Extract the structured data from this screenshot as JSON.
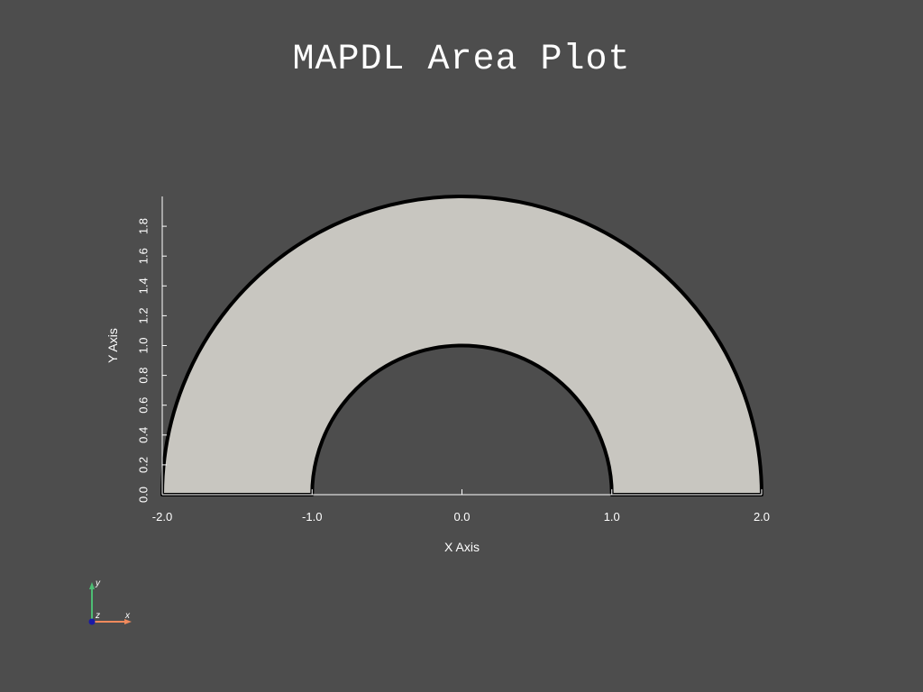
{
  "title": "MAPDL Area Plot",
  "colors": {
    "background": "#4d4d4d",
    "area_fill": "#c8c6c0",
    "edge": "#000000",
    "axis": "#ffffff",
    "triad_x": "#f08a5d",
    "triad_y": "#4dbd74",
    "triad_z": "#1a1aa6"
  },
  "chart_data": {
    "type": "area",
    "geometry": "half-annulus",
    "inner_radius": 1.0,
    "outer_radius": 2.0,
    "center": [
      0.0,
      0.0
    ],
    "angle_range_deg": [
      0,
      180
    ],
    "xlabel": "X Axis",
    "ylabel": "Y Axis",
    "xlim": [
      -2.0,
      2.0
    ],
    "ylim": [
      0.0,
      2.0
    ],
    "x_ticks": [
      -2.0,
      -1.0,
      0.0,
      1.0,
      2.0
    ],
    "x_tick_labels": [
      "-2.0",
      "-1.0",
      "0.0",
      "1.0",
      "2.0"
    ],
    "y_ticks": [
      0.0,
      0.2,
      0.4,
      0.6,
      0.8,
      1.0,
      1.2,
      1.4,
      1.6,
      1.8
    ],
    "y_tick_labels": [
      "0.0",
      "0.2",
      "0.4",
      "0.6",
      "0.8",
      "1.0",
      "1.2",
      "1.4",
      "1.6",
      "1.8"
    ],
    "grid": false
  },
  "triad": {
    "x_label": "x",
    "y_label": "y",
    "z_label": "z"
  }
}
